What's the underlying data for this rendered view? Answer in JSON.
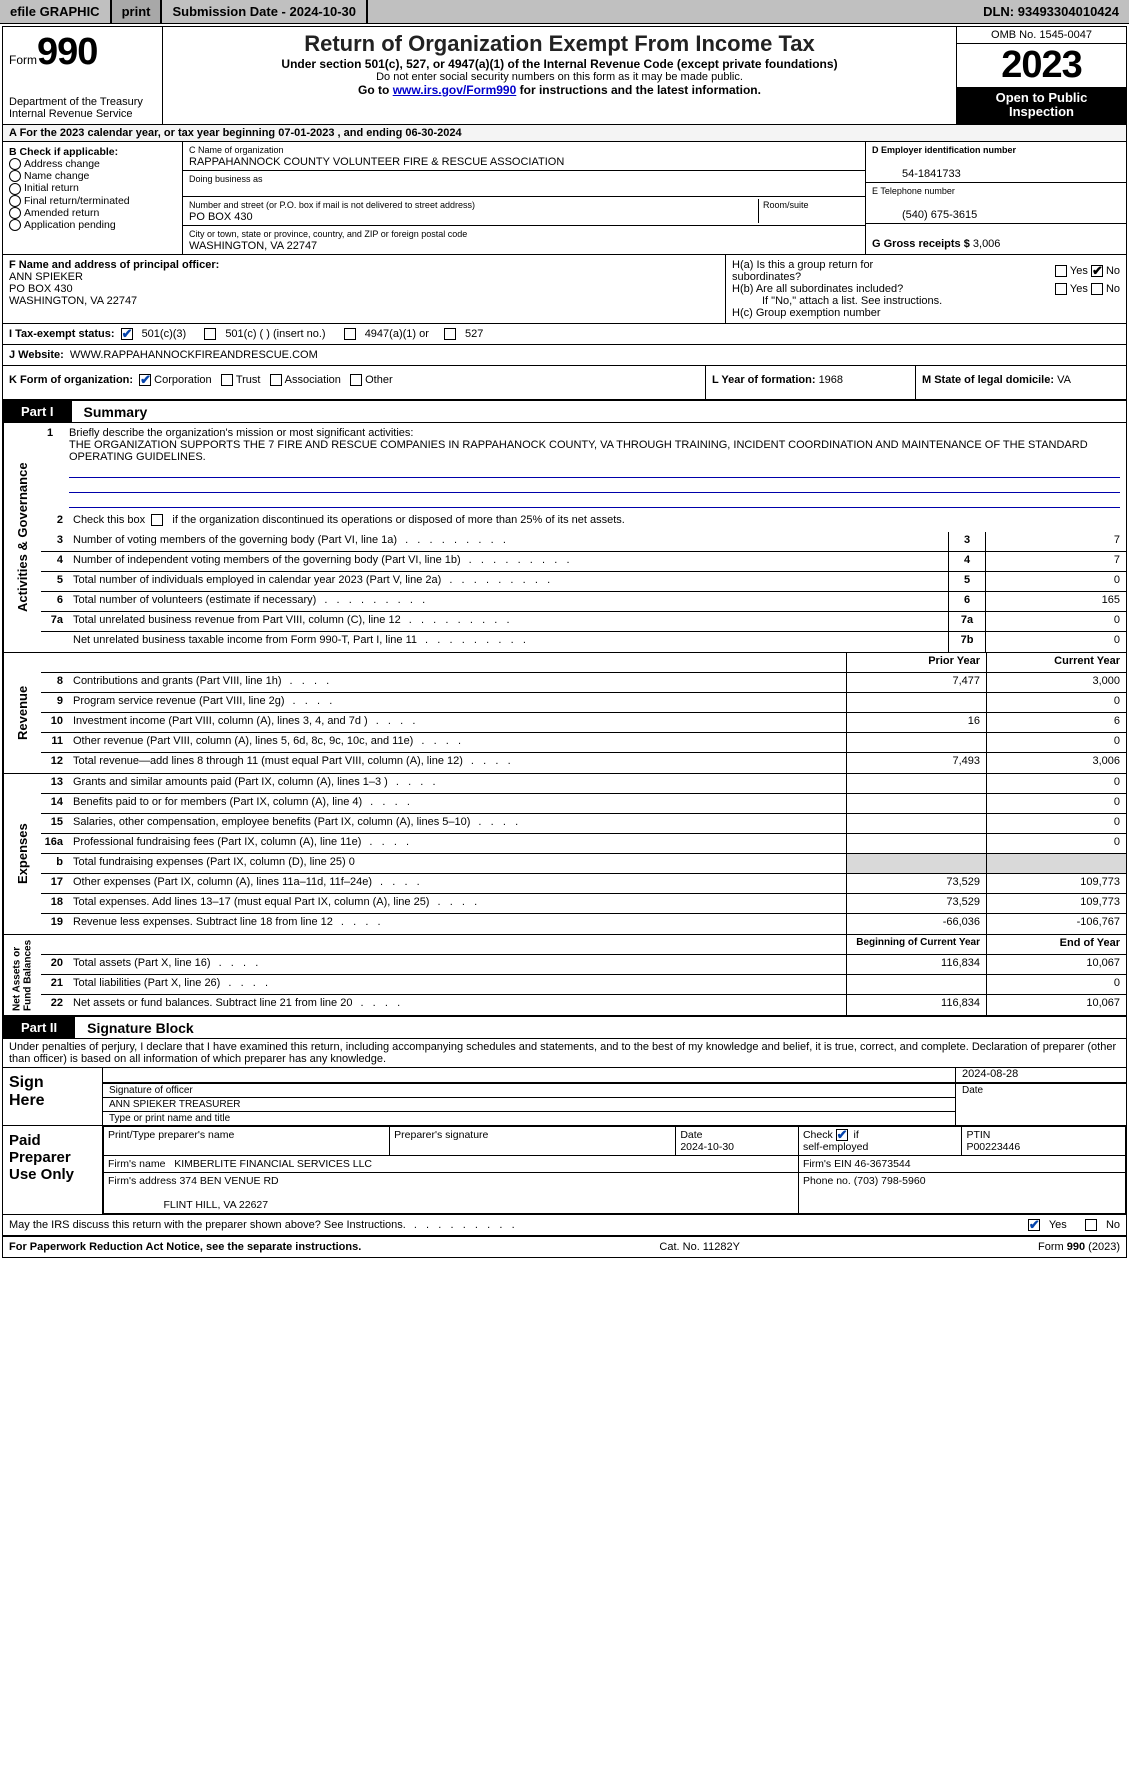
{
  "topbar": {
    "efile": "efile GRAPHIC",
    "print": "print",
    "submission_label": "Submission Date - ",
    "submission_date": "2024-10-30",
    "dln_label": "DLN: ",
    "dln": "93493304010424"
  },
  "header": {
    "form_prefix": "Form",
    "form_number": "990",
    "dept": "Department of the Treasury\nInternal Revenue Service",
    "title": "Return of Organization Exempt From Income Tax",
    "subtitle": "Under section 501(c), 527, or 4947(a)(1) of the Internal Revenue Code (except private foundations)",
    "ssn_note": "Do not enter social security numbers on this form as it may be made public.",
    "goto_prefix": "Go to ",
    "goto_link": "www.irs.gov/Form990",
    "goto_suffix": " for instructions and the latest information.",
    "omb": "OMB No. 1545-0047",
    "year": "2023",
    "open": "Open to Public\nInspection"
  },
  "lineA": {
    "prefix": "A For the 2023 calendar year, or tax year beginning ",
    "begin": "07-01-2023",
    "mid": " , and ending ",
    "end": "06-30-2024"
  },
  "boxB": {
    "title": "B Check if applicable:",
    "options": [
      "Address change",
      "Name change",
      "Initial return",
      "Final return/terminated",
      "Amended return",
      "Application pending"
    ]
  },
  "boxC": {
    "name_label": "C Name of organization",
    "name": "RAPPAHANNOCK COUNTY VOLUNTEER FIRE & RESCUE ASSOCIATION",
    "dba_label": "Doing business as",
    "street_label": "Number and street (or P.O. box if mail is not delivered to street address)",
    "street": "PO BOX 430",
    "room_label": "Room/suite",
    "city_label": "City or town, state or province, country, and ZIP or foreign postal code",
    "city": "WASHINGTON, VA  22747"
  },
  "boxD": {
    "ein_label": "D Employer identification number",
    "ein": "54-1841733",
    "phone_label": "E Telephone number",
    "phone": "(540) 675-3615",
    "gross_label": "G Gross receipts $ ",
    "gross": "3,006"
  },
  "boxF": {
    "label": "F  Name and address of principal officer:",
    "name": "ANN SPIEKER",
    "street": "PO BOX 430",
    "city": "WASHINGTON, VA  22747"
  },
  "boxH": {
    "a_label": "H(a)  Is this a group return for\nsubordinates?",
    "b_label": "H(b)  Are all subordinates included?",
    "b_note": "If \"No,\" attach a list. See instructions.",
    "c_label": "H(c)  Group exemption number ",
    "yes": "Yes",
    "no": "No"
  },
  "taxExempt": {
    "label": "I  Tax-exempt status:",
    "c3": "501(c)(3)",
    "c": "501(c) (   ) (insert no.)",
    "a1": "4947(a)(1) or",
    "s527": "527"
  },
  "website": {
    "label": "J  Website: ",
    "url": "WWW.RAPPAHANNOCKFIREANDRESCUE.COM"
  },
  "boxK": {
    "label": "K Form of organization:",
    "corp": "Corporation",
    "trust": "Trust",
    "assoc": "Association",
    "other": "Other"
  },
  "boxL": {
    "label": "L Year of formation: ",
    "val": "1968"
  },
  "boxM": {
    "label": "M State of legal domicile: ",
    "val": "VA"
  },
  "part1": {
    "tab": "Part I",
    "title": "Summary"
  },
  "part2": {
    "tab": "Part II",
    "title": "Signature Block"
  },
  "vtabs": {
    "gov": "Activities & Governance",
    "rev": "Revenue",
    "exp": "Expenses",
    "net": "Net Assets or\nFund Balances"
  },
  "summary": {
    "l1_label": "Briefly describe the organization's mission or most significant activities:",
    "l1_text": "THE ORGANIZATION SUPPORTS THE 7 FIRE AND RESCUE COMPANIES IN RAPPAHANOCK COUNTY, VA THROUGH TRAINING, INCIDENT COORDINATION AND MAINTENANCE OF THE STANDARD OPERATING GUIDELINES.",
    "l2": "Check this box      if the organization discontinued its operations or disposed of more than 25% of its net assets.",
    "l3": "Number of voting members of the governing body (Part VI, line 1a)",
    "l4": "Number of independent voting members of the governing body (Part VI, line 1b)",
    "l5": "Total number of individuals employed in calendar year 2023 (Part V, line 2a)",
    "l6": "Total number of volunteers (estimate if necessary)",
    "l7a": "Total unrelated business revenue from Part VIII, column (C), line 12",
    "l7b": "Net unrelated business taxable income from Form 990-T, Part I, line 11",
    "vals": {
      "3": "7",
      "4": "7",
      "5": "0",
      "6": "165",
      "7a": "0",
      "7b": "0"
    },
    "prior_hdr": "Prior Year",
    "curr_hdr": "Current Year",
    "rows": [
      {
        "n": "8",
        "d": "Contributions and grants (Part VIII, line 1h)",
        "p": "7,477",
        "c": "3,000"
      },
      {
        "n": "9",
        "d": "Program service revenue (Part VIII, line 2g)",
        "p": "",
        "c": "0"
      },
      {
        "n": "10",
        "d": "Investment income (Part VIII, column (A), lines 3, 4, and 7d )",
        "p": "16",
        "c": "6"
      },
      {
        "n": "11",
        "d": "Other revenue (Part VIII, column (A), lines 5, 6d, 8c, 9c, 10c, and 11e)",
        "p": "",
        "c": "0"
      },
      {
        "n": "12",
        "d": "Total revenue—add lines 8 through 11 (must equal Part VIII, column (A), line 12)",
        "p": "7,493",
        "c": "3,006"
      },
      {
        "n": "13",
        "d": "Grants and similar amounts paid (Part IX, column (A), lines 1–3 )",
        "p": "",
        "c": "0"
      },
      {
        "n": "14",
        "d": "Benefits paid to or for members (Part IX, column (A), line 4)",
        "p": "",
        "c": "0"
      },
      {
        "n": "15",
        "d": "Salaries, other compensation, employee benefits (Part IX, column (A), lines 5–10)",
        "p": "",
        "c": "0"
      },
      {
        "n": "16a",
        "d": "Professional fundraising fees (Part IX, column (A), line 11e)",
        "p": "",
        "c": "0"
      },
      {
        "n": "b",
        "d": "Total fundraising expenses (Part IX, column (D), line 25) 0",
        "p": "shade",
        "c": "shade"
      },
      {
        "n": "17",
        "d": "Other expenses (Part IX, column (A), lines 11a–11d, 11f–24e)",
        "p": "73,529",
        "c": "109,773"
      },
      {
        "n": "18",
        "d": "Total expenses. Add lines 13–17 (must equal Part IX, column (A), line 25)",
        "p": "73,529",
        "c": "109,773"
      },
      {
        "n": "19",
        "d": "Revenue less expenses. Subtract line 18 from line 12",
        "p": "-66,036",
        "c": "-106,767"
      }
    ],
    "net_hdr_p": "Beginning of Current Year",
    "net_hdr_c": "End of Year",
    "net_rows": [
      {
        "n": "20",
        "d": "Total assets (Part X, line 16)",
        "p": "116,834",
        "c": "10,067"
      },
      {
        "n": "21",
        "d": "Total liabilities (Part X, line 26)",
        "p": "",
        "c": "0"
      },
      {
        "n": "22",
        "d": "Net assets or fund balances. Subtract line 21 from line 20",
        "p": "116,834",
        "c": "10,067"
      }
    ]
  },
  "sig": {
    "perjury": "Under penalties of perjury, I declare that I have examined this return, including accompanying schedules and statements, and to the best of my knowledge and belief, it is true, correct, and complete. Declaration of preparer (other than officer) is based on all information of which preparer has any knowledge.",
    "sign_here": "Sign\nHere",
    "sig_officer": "Signature of officer",
    "sig_name": "ANN SPIEKER  TREASURER",
    "sig_type": "Type or print name and title",
    "sig_date_label": "Date",
    "sig_date": "2024-08-28",
    "paid": "Paid\nPreparer\nUse Only",
    "prep_name_label": "Print/Type preparer's name",
    "prep_sig_label": "Preparer's signature",
    "prep_date_label": "Date",
    "prep_date": "2024-10-30",
    "check_se": "Check        if self-employed",
    "ptin_label": "PTIN",
    "ptin": "P00223446",
    "firm_name_label": "Firm's name   ",
    "firm_name": "KIMBERLITE FINANCIAL SERVICES LLC",
    "firm_ein_label": "Firm's EIN  ",
    "firm_ein": "46-3673544",
    "firm_addr_label": "Firm's address ",
    "firm_addr1": "374 BEN VENUE RD",
    "firm_addr2": "FLINT HILL, VA  22627",
    "firm_phone_label": "Phone no. ",
    "firm_phone": "(703) 798-5960",
    "discuss": "May the IRS discuss this return with the preparer shown above? See Instructions."
  },
  "footer": {
    "pra": "For Paperwork Reduction Act Notice, see the separate instructions.",
    "cat": "Cat. No. 11282Y",
    "form": "Form 990 (2023)"
  },
  "colors": {
    "link": "#0000cc",
    "check": "#0645ad",
    "mission_line": "#0000aa",
    "topbar": "#c0c0c0",
    "shade": "#d9d9d9"
  }
}
